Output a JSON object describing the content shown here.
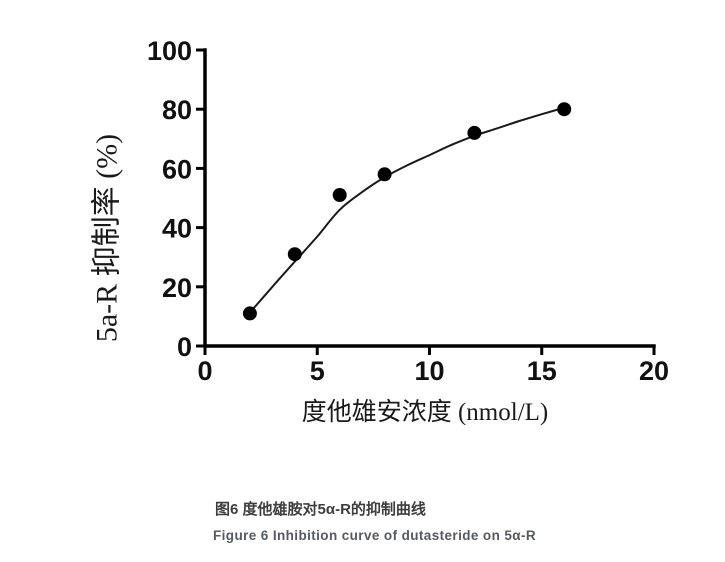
{
  "figure": {
    "caption_zh": "图6 度他雄胺对5α-R的抑制曲线",
    "caption_en": "Figure 6 Inhibition curve of dutasteride on 5α-R"
  },
  "chart_data": {
    "type": "scatter",
    "title": "",
    "xlabel": "度他雄安浓度 (nmol/L)",
    "ylabel": "5a-R 抑制率 (%)",
    "xlim": [
      0,
      20
    ],
    "ylim": [
      0,
      100
    ],
    "xticks": [
      0,
      5,
      10,
      15,
      20
    ],
    "yticks": [
      0,
      20,
      40,
      60,
      80,
      100
    ],
    "grid": false,
    "legend": "none",
    "marker_color": "#000000",
    "line_color": "#1a1a1a",
    "points": {
      "x": [
        2,
        4,
        6,
        8,
        12,
        16
      ],
      "y": [
        11,
        31,
        51,
        58,
        72,
        80
      ]
    },
    "fit_curve": {
      "x": [
        2,
        3,
        4,
        5,
        6,
        7,
        8,
        9,
        10,
        11,
        12,
        13,
        14,
        15,
        16
      ],
      "y": [
        11.3,
        20,
        28.5,
        37,
        46,
        52,
        57,
        61,
        64.5,
        68,
        71,
        73.5,
        76,
        78.3,
        80.5
      ]
    }
  }
}
